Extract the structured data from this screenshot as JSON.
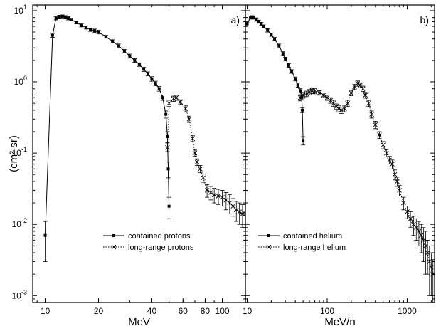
{
  "ylabel": "(cm² sr)",
  "chart_data": [
    {
      "type": "line",
      "panel_label": "a)",
      "xlabel": "MeV",
      "xscale": "log",
      "yscale": "log",
      "xlim": [
        8.5,
        135
      ],
      "ylim": [
        0.0008,
        12
      ],
      "xticks": [
        {
          "value": 10,
          "label": "10"
        },
        {
          "value": 20,
          "label": "20"
        },
        {
          "value": 40,
          "label": "40"
        },
        {
          "value": 60,
          "label": "60"
        },
        {
          "value": 80,
          "label": "80"
        },
        {
          "value": 100,
          "label": "100"
        }
      ],
      "yticks": [
        {
          "value": 0.001,
          "base": "10",
          "exp": "-3"
        },
        {
          "value": 0.01,
          "base": "10",
          "exp": "-2"
        },
        {
          "value": 0.1,
          "base": "10",
          "exp": "-1"
        },
        {
          "value": 1,
          "base": "10",
          "exp": "0"
        },
        {
          "value": 10,
          "base": "10",
          "exp": "1"
        }
      ],
      "legend_position": "bottom-center",
      "series": [
        {
          "name": "contained protons",
          "style": "solid",
          "marker": "square",
          "x": [
            10,
            11,
            11.5,
            12,
            12.5,
            13,
            13.5,
            14,
            15,
            16,
            17,
            18,
            19,
            20,
            22,
            24,
            26,
            28,
            30,
            32,
            34,
            36,
            38,
            40,
            42,
            44,
            46,
            48,
            49,
            49.5,
            50
          ],
          "y": [
            0.007,
            4.5,
            7.8,
            8.2,
            8.3,
            8.1,
            7.8,
            7.5,
            6.8,
            6.2,
            5.8,
            5.4,
            5.2,
            5.0,
            4.3,
            3.7,
            3.2,
            2.7,
            2.3,
            2.0,
            1.75,
            1.5,
            1.3,
            1.1,
            0.95,
            0.8,
            0.6,
            0.35,
            0.17,
            0.06,
            0.018
          ],
          "err": [
            0.004,
            0.3,
            0.4,
            0.4,
            0.4,
            0.4,
            0.4,
            0.3,
            0.3,
            0.3,
            0.3,
            0.3,
            0.3,
            0.3,
            0.2,
            0.2,
            0.2,
            0.15,
            0.15,
            0.12,
            0.1,
            0.1,
            0.08,
            0.08,
            0.07,
            0.06,
            0.05,
            0.04,
            0.03,
            0.015,
            0.006
          ]
        },
        {
          "name": "long-range protons",
          "style": "dotted",
          "marker": "x",
          "x": [
            49,
            50,
            53,
            55,
            58,
            62,
            65,
            68,
            70,
            72,
            75,
            78,
            82,
            86,
            90,
            95,
            100,
            105,
            110,
            115,
            120,
            125,
            130,
            135
          ],
          "y": [
            0.12,
            0.5,
            0.58,
            0.6,
            0.52,
            0.42,
            0.3,
            0.16,
            0.1,
            0.075,
            0.06,
            0.045,
            0.03,
            0.028,
            0.026,
            0.025,
            0.024,
            0.022,
            0.02,
            0.018,
            0.016,
            0.015,
            0.014,
            0.014
          ],
          "err": [
            0.015,
            0.05,
            0.05,
            0.05,
            0.04,
            0.04,
            0.03,
            0.015,
            0.01,
            0.008,
            0.007,
            0.006,
            0.006,
            0.006,
            0.006,
            0.006,
            0.006,
            0.006,
            0.006,
            0.005,
            0.005,
            0.005,
            0.005,
            0.005
          ]
        }
      ]
    },
    {
      "type": "line",
      "panel_label": "b)",
      "xlabel": "MeV/n",
      "xscale": "log",
      "yscale": "log",
      "xlim": [
        9.5,
        2200
      ],
      "ylim": [
        0.0008,
        12
      ],
      "xticks": [
        {
          "value": 10,
          "label": "10"
        },
        {
          "value": 100,
          "label": "100"
        },
        {
          "value": 1000,
          "label": "1000"
        }
      ],
      "yticks": [
        {
          "value": 0.001
        },
        {
          "value": 0.01
        },
        {
          "value": 0.1
        },
        {
          "value": 1
        },
        {
          "value": 10
        }
      ],
      "legend_position": "bottom-center",
      "series": [
        {
          "name": "contained helium",
          "style": "solid",
          "marker": "square",
          "x": [
            10,
            11,
            11.5,
            12,
            13,
            14,
            15,
            16,
            18,
            20,
            22,
            25,
            28,
            30,
            33,
            36,
            40,
            43,
            46,
            48,
            49,
            50
          ],
          "y": [
            6.5,
            8.0,
            8.1,
            8.0,
            7.5,
            7.0,
            6.5,
            6.0,
            5.3,
            4.6,
            4.0,
            3.2,
            2.5,
            2.1,
            1.7,
            1.4,
            1.1,
            0.9,
            0.75,
            0.6,
            0.4,
            0.15
          ],
          "err": [
            0.4,
            0.4,
            0.4,
            0.4,
            0.4,
            0.35,
            0.35,
            0.3,
            0.3,
            0.25,
            0.2,
            0.2,
            0.15,
            0.12,
            0.1,
            0.08,
            0.07,
            0.06,
            0.05,
            0.04,
            0.03,
            0.02
          ]
        },
        {
          "name": "long-range helium",
          "style": "dotted",
          "marker": "x",
          "x": [
            46,
            50,
            55,
            60,
            65,
            70,
            80,
            90,
            100,
            110,
            120,
            130,
            140,
            150,
            165,
            180,
            200,
            220,
            240,
            260,
            280,
            300,
            330,
            360,
            400,
            450,
            500,
            550,
            600,
            650,
            700,
            750,
            800,
            900,
            1000,
            1100,
            1200,
            1300,
            1400,
            1500,
            1600,
            1700,
            1800,
            1900,
            2000,
            2100
          ],
          "y": [
            0.6,
            0.65,
            0.68,
            0.72,
            0.75,
            0.74,
            0.7,
            0.65,
            0.6,
            0.55,
            0.5,
            0.45,
            0.42,
            0.4,
            0.42,
            0.5,
            0.7,
            0.85,
            0.95,
            0.9,
            0.8,
            0.65,
            0.5,
            0.35,
            0.25,
            0.18,
            0.13,
            0.1,
            0.08,
            0.07,
            0.05,
            0.04,
            0.03,
            0.02,
            0.015,
            0.012,
            0.01,
            0.009,
            0.008,
            0.007,
            0.006,
            0.005,
            0.004,
            0.003,
            0.0025,
            0.002
          ],
          "err": [
            0.06,
            0.06,
            0.06,
            0.06,
            0.06,
            0.06,
            0.05,
            0.05,
            0.05,
            0.05,
            0.05,
            0.04,
            0.04,
            0.04,
            0.04,
            0.05,
            0.06,
            0.07,
            0.08,
            0.07,
            0.07,
            0.06,
            0.05,
            0.04,
            0.03,
            0.02,
            0.015,
            0.012,
            0.01,
            0.01,
            0.008,
            0.006,
            0.005,
            0.004,
            0.003,
            0.003,
            0.003,
            0.003,
            0.003,
            0.003,
            0.003,
            0.003,
            0.002,
            0.002,
            0.0015,
            0.0012
          ]
        }
      ]
    }
  ]
}
